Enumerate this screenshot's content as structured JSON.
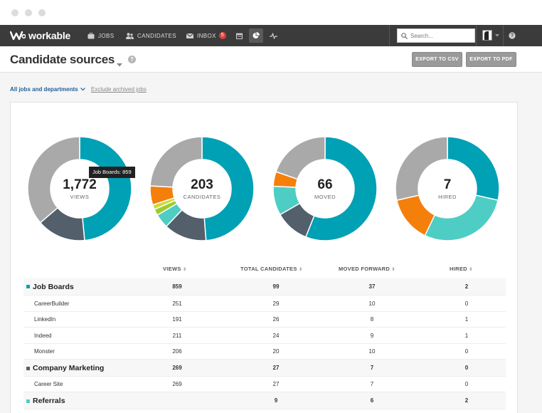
{
  "app": {
    "logo_text": "workable",
    "nav": {
      "jobs": "JOBS",
      "candidates": "CANDIDATES",
      "inbox": "INBOX",
      "inbox_count": "5"
    },
    "search_placeholder": "Search...",
    "help": "?"
  },
  "header": {
    "title": "Candidate sources",
    "help": "?",
    "export_csv": "EXPORT TO CSV",
    "export_pdf": "EXPORT TO PDF"
  },
  "filters": {
    "scope": "All jobs and departments",
    "exclude_archived": "Exclude archived jobs"
  },
  "colors": {
    "teal": "#00a0b5",
    "slate": "#535f6b",
    "gray": "#a9a9a9",
    "orange": "#f57f0b",
    "aqua": "#4ecdc4",
    "lime": "#9ccc2f"
  },
  "donuts": [
    {
      "value": "1,772",
      "label": "VIEWS",
      "tooltip": "Job Boards: 859",
      "segments": [
        {
          "value": 859,
          "color": "#00a0b5"
        },
        {
          "value": 269,
          "color": "#535f6b"
        },
        {
          "value": 644,
          "color": "#a9a9a9"
        }
      ]
    },
    {
      "value": "203",
      "label": "CANDIDATES",
      "segments": [
        {
          "value": 99,
          "color": "#00a0b5"
        },
        {
          "value": 27,
          "color": "#535f6b"
        },
        {
          "value": 9,
          "color": "#4ecdc4"
        },
        {
          "value": 4,
          "color": "#9ccc2f"
        },
        {
          "value": 3,
          "color": "#ccdd2f"
        },
        {
          "value": 12,
          "color": "#f57f0b"
        },
        {
          "value": 49,
          "color": "#a9a9a9"
        }
      ]
    },
    {
      "value": "66",
      "label": "MOVED",
      "segments": [
        {
          "value": 37,
          "color": "#00a0b5"
        },
        {
          "value": 7,
          "color": "#535f6b"
        },
        {
          "value": 6,
          "color": "#4ecdc4"
        },
        {
          "value": 3,
          "color": "#f57f0b"
        },
        {
          "value": 13,
          "color": "#a9a9a9"
        }
      ]
    },
    {
      "value": "7",
      "label": "HIRED",
      "segments": [
        {
          "value": 2,
          "color": "#00a0b5"
        },
        {
          "value": 2,
          "color": "#4ecdc4"
        },
        {
          "value": 1,
          "color": "#f57f0b"
        },
        {
          "value": 2,
          "color": "#a9a9a9"
        }
      ]
    }
  ],
  "table": {
    "columns": [
      "VIEWS",
      "TOTAL CANDIDATES",
      "MOVED FORWARD",
      "HIRED"
    ],
    "rows": [
      {
        "type": "group",
        "name": "Job Boards",
        "color": "#00a0b5",
        "views": "859",
        "candidates": "99",
        "moved": "37",
        "hired": "2"
      },
      {
        "type": "item",
        "name": "CareerBuilder",
        "views": "251",
        "candidates": "29",
        "moved": "10",
        "hired": "0"
      },
      {
        "type": "item",
        "name": "LinkedIn",
        "views": "191",
        "candidates": "26",
        "moved": "8",
        "hired": "1"
      },
      {
        "type": "item",
        "name": "Indeed",
        "views": "211",
        "candidates": "24",
        "moved": "9",
        "hired": "1"
      },
      {
        "type": "item",
        "name": "Monster",
        "views": "206",
        "candidates": "20",
        "moved": "10",
        "hired": "0"
      },
      {
        "type": "group",
        "name": "Company Marketing",
        "color": "#535f6b",
        "views": "269",
        "candidates": "27",
        "moved": "7",
        "hired": "0"
      },
      {
        "type": "item",
        "name": "Career Site",
        "views": "269",
        "candidates": "27",
        "moved": "7",
        "hired": "0"
      },
      {
        "type": "group",
        "name": "Referrals",
        "color": "#4ecdc4",
        "views": "",
        "candidates": "9",
        "moved": "6",
        "hired": "2"
      }
    ]
  }
}
